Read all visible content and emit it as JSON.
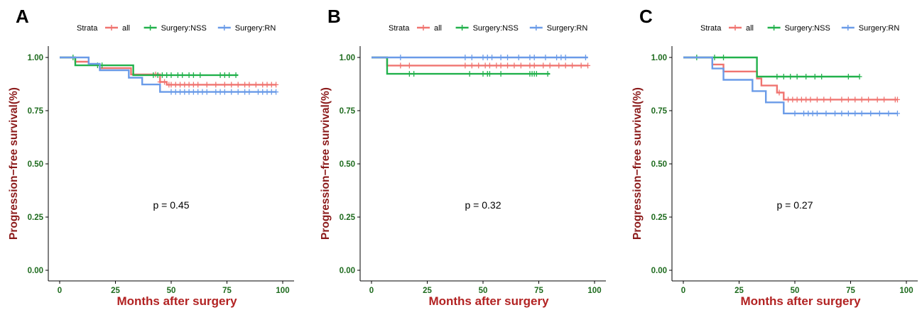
{
  "colors": {
    "all": "#F07470",
    "nss": "#22B14C",
    "rn": "#6A9BE8",
    "axis_title": "#B22222",
    "ylabel": "#8B1A1A",
    "tick": "#1E6B1E",
    "text": "#000000"
  },
  "chart_data": [
    {
      "panel_label": "A",
      "type": "line",
      "step": true,
      "legend_title": "Strata",
      "legend_position": "top",
      "xlabel": "Months after surgery",
      "ylabel": "Progression−free survival(%)",
      "xlim": [
        0,
        100
      ],
      "ylim": [
        0,
        1
      ],
      "xticks": [
        "0",
        "25",
        "50",
        "75",
        "100"
      ],
      "yticks": [
        "0.00",
        "0.25",
        "0.50",
        "0.75",
        "1.00"
      ],
      "annotation": "p = 0.45",
      "series": [
        {
          "name": "all",
          "color_key": "all",
          "steps": [
            [
              0,
              1.0
            ],
            [
              7,
              0.98
            ],
            [
              13,
              0.965
            ],
            [
              18,
              0.95
            ],
            [
              32,
              0.92
            ],
            [
              45,
              0.885
            ],
            [
              48,
              0.872
            ],
            [
              97,
              0.872
            ]
          ],
          "censor": [
            43,
            45,
            47,
            49,
            50,
            52,
            54,
            56,
            58,
            60,
            62,
            66,
            70,
            74,
            77,
            80,
            83,
            85,
            88,
            91,
            93,
            95,
            97
          ]
        },
        {
          "name": "Surgery:NSS",
          "color_key": "nss",
          "steps": [
            [
              0,
              1.0
            ],
            [
              7,
              0.963
            ],
            [
              33,
              0.917
            ],
            [
              80,
              0.917
            ]
          ],
          "censor": [
            6,
            17,
            19,
            42,
            44,
            46,
            48,
            50,
            53,
            55,
            58,
            60,
            63,
            72,
            74,
            76,
            79
          ]
        },
        {
          "name": "Surgery:RN",
          "color_key": "rn",
          "steps": [
            [
              0,
              1.0
            ],
            [
              13,
              0.97
            ],
            [
              18,
              0.94
            ],
            [
              31,
              0.905
            ],
            [
              37,
              0.873
            ],
            [
              45,
              0.838
            ],
            [
              97,
              0.838
            ]
          ],
          "censor": [
            50,
            52,
            54,
            56,
            58,
            60,
            62,
            64,
            66,
            70,
            72,
            74,
            77,
            80,
            83,
            85,
            89,
            91,
            93,
            95,
            97
          ]
        }
      ]
    },
    {
      "panel_label": "B",
      "type": "line",
      "step": true,
      "legend_title": "Strata",
      "legend_position": "top",
      "xlabel": "Months after surgery",
      "ylabel": "Progression−free survival(%)",
      "xlim": [
        0,
        100
      ],
      "ylim": [
        0,
        1
      ],
      "xticks": [
        "0",
        "25",
        "50",
        "75",
        "100"
      ],
      "yticks": [
        "0.00",
        "0.25",
        "0.50",
        "0.75",
        "1.00"
      ],
      "annotation": "p = 0.32",
      "series": [
        {
          "name": "all",
          "color_key": "all",
          "steps": [
            [
              0,
              1.0
            ],
            [
              7,
              0.962
            ],
            [
              97,
              0.962
            ]
          ],
          "censor": [
            13,
            17,
            42,
            45,
            48,
            51,
            53,
            56,
            58,
            61,
            64,
            67,
            71,
            73,
            77,
            80,
            84,
            87,
            90,
            94,
            97
          ]
        },
        {
          "name": "Surgery:NSS",
          "color_key": "nss",
          "steps": [
            [
              0,
              1.0
            ],
            [
              7,
              0.923
            ],
            [
              80,
              0.923
            ]
          ],
          "censor": [
            17,
            19,
            44,
            50,
            52,
            53,
            58,
            71,
            72,
            73,
            74,
            79
          ]
        },
        {
          "name": "Surgery:RN",
          "color_key": "rn",
          "steps": [
            [
              0,
              1.0
            ],
            [
              97,
              1.0
            ]
          ],
          "censor": [
            13,
            42,
            45,
            50,
            52,
            54,
            58,
            61,
            66,
            71,
            73,
            78,
            83,
            85,
            87,
            96
          ]
        }
      ]
    },
    {
      "panel_label": "C",
      "type": "line",
      "step": true,
      "legend_title": "Strata",
      "legend_position": "top",
      "xlabel": "Months after surgery",
      "ylabel": "Progression−free survival(%)",
      "xlim": [
        0,
        100
      ],
      "ylim": [
        0,
        1
      ],
      "xticks": [
        "0",
        "25",
        "50",
        "75",
        "100"
      ],
      "yticks": [
        "0.00",
        "0.25",
        "0.50",
        "0.75",
        "1.00"
      ],
      "annotation": "p = 0.27",
      "series": [
        {
          "name": "all",
          "color_key": "all",
          "steps": [
            [
              0,
              1.0
            ],
            [
              13,
              0.967
            ],
            [
              18,
              0.934
            ],
            [
              33,
              0.901
            ],
            [
              35,
              0.868
            ],
            [
              42,
              0.835
            ],
            [
              45,
              0.802
            ],
            [
              96,
              0.802
            ]
          ],
          "censor": [
            43,
            47,
            49,
            51,
            53,
            55,
            57,
            60,
            63,
            66,
            71,
            74,
            77,
            80,
            83,
            87,
            90,
            95,
            96
          ]
        },
        {
          "name": "Surgery:NSS",
          "color_key": "nss",
          "steps": [
            [
              0,
              1.0
            ],
            [
              33,
              0.91
            ],
            [
              79,
              0.91
            ]
          ],
          "censor": [
            6,
            14,
            18,
            42,
            45,
            48,
            51,
            55,
            59,
            62,
            74,
            79
          ]
        },
        {
          "name": "Surgery:RN",
          "color_key": "rn",
          "steps": [
            [
              0,
              1.0
            ],
            [
              13,
              0.948
            ],
            [
              18,
              0.895
            ],
            [
              31,
              0.842
            ],
            [
              37,
              0.789
            ],
            [
              45,
              0.737
            ],
            [
              96,
              0.737
            ]
          ],
          "censor": [
            50,
            54,
            56,
            58,
            60,
            64,
            68,
            71,
            74,
            77,
            80,
            84,
            88,
            92,
            96
          ]
        }
      ]
    }
  ]
}
